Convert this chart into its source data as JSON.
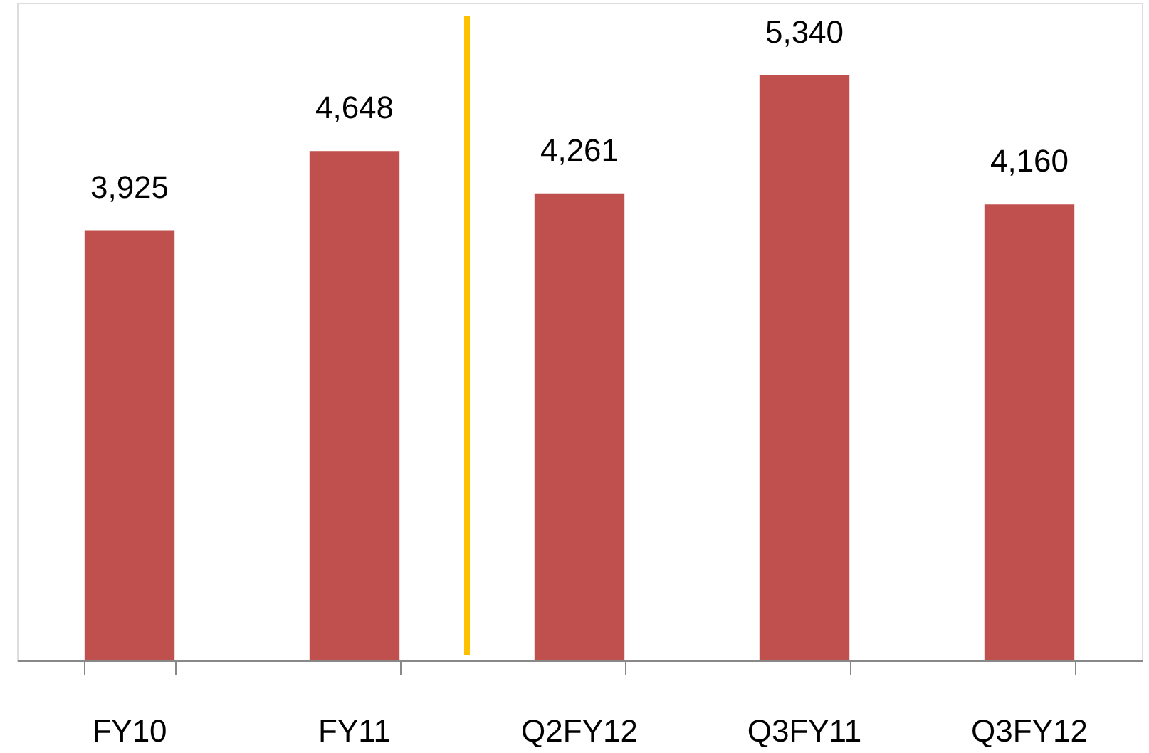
{
  "chart_data": {
    "type": "bar",
    "categories": [
      "FY10",
      "FY11",
      "Q2FY12",
      "Q3FY11",
      "Q3FY12"
    ],
    "values": [
      3925,
      4648,
      4261,
      5340,
      4160
    ],
    "value_labels": [
      "3,925",
      "4,648",
      "4,261",
      "5,340",
      "4,160"
    ],
    "color": "#c0504d",
    "ylim": [
      0,
      6000
    ],
    "tick_labels": "x",
    "grid": false
  }
}
